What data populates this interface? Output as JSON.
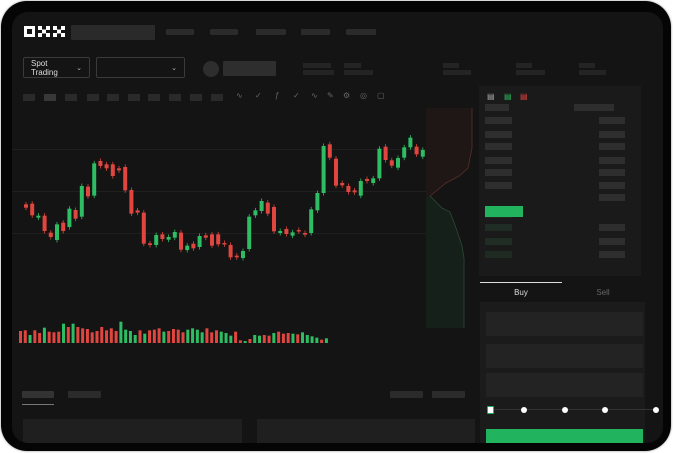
{
  "brand": {
    "logo": "OKX"
  },
  "toolbar": {
    "market_select": "Spot Trading",
    "pair_select": "",
    "chevron": "chevron-down-icon"
  },
  "order_form": {
    "tabs": [
      {
        "label": "Buy",
        "active": true
      },
      {
        "label": "Sell",
        "active": false
      }
    ],
    "leverage_slider_value": 0
  },
  "colors": {
    "up": "#2ebd63",
    "down": "#e0463f",
    "background": "#141414",
    "accent": "#22b35e"
  },
  "candles": [
    [
      250,
      260
    ],
    [
      248,
      283
    ],
    [
      290,
      284
    ],
    [
      284,
      330
    ],
    [
      335,
      348
    ],
    [
      357,
      310
    ],
    [
      305,
      330
    ],
    [
      318,
      263
    ],
    [
      267,
      293
    ],
    [
      287,
      195
    ],
    [
      197,
      226
    ],
    [
      224,
      127
    ],
    [
      120,
      135
    ],
    [
      130,
      142
    ],
    [
      130,
      165
    ],
    [
      142,
      148
    ],
    [
      138,
      208
    ],
    [
      207,
      278
    ],
    [
      268,
      275
    ],
    [
      275,
      368
    ],
    [
      367,
      372
    ],
    [
      372,
      342
    ],
    [
      340,
      354
    ],
    [
      356,
      348
    ],
    [
      350,
      333
    ],
    [
      335,
      386
    ],
    [
      387,
      374
    ],
    [
      368,
      382
    ],
    [
      378,
      345
    ],
    [
      343,
      350
    ],
    [
      340,
      374
    ],
    [
      340,
      370
    ],
    [
      366,
      370
    ],
    [
      372,
      409
    ],
    [
      404,
      409
    ],
    [
      411,
      390
    ],
    [
      384,
      287
    ],
    [
      283,
      268
    ],
    [
      270,
      240
    ],
    [
      245,
      278
    ],
    [
      258,
      331
    ],
    [
      336,
      330
    ],
    [
      324,
      339
    ],
    [
      344,
      334
    ],
    [
      327,
      331
    ],
    [
      336,
      341
    ],
    [
      336,
      265
    ],
    [
      268,
      216
    ],
    [
      216,
      75
    ],
    [
      70,
      110
    ],
    [
      113,
      194
    ],
    [
      186,
      193
    ],
    [
      195,
      213
    ],
    [
      208,
      214
    ],
    [
      224,
      180
    ],
    [
      174,
      180
    ],
    [
      186,
      172
    ],
    [
      172,
      83
    ],
    [
      77,
      117
    ],
    [
      118,
      134
    ],
    [
      140,
      111
    ],
    [
      110,
      79
    ],
    [
      79,
      50
    ],
    [
      77,
      100
    ],
    [
      107,
      87
    ]
  ],
  "volumes": [
    [
      36,
      "down"
    ],
    [
      38,
      "down"
    ],
    [
      24,
      "up"
    ],
    [
      38,
      "down"
    ],
    [
      30,
      "down"
    ],
    [
      46,
      "up"
    ],
    [
      34,
      "down"
    ],
    [
      32,
      "down"
    ],
    [
      34,
      "down"
    ],
    [
      58,
      "up"
    ],
    [
      48,
      "down"
    ],
    [
      58,
      "up"
    ],
    [
      48,
      "down"
    ],
    [
      44,
      "down"
    ],
    [
      42,
      "down"
    ],
    [
      32,
      "down"
    ],
    [
      36,
      "down"
    ],
    [
      48,
      "down"
    ],
    [
      38,
      "down"
    ],
    [
      44,
      "down"
    ],
    [
      36,
      "down"
    ],
    [
      64,
      "up"
    ],
    [
      40,
      "up"
    ],
    [
      36,
      "up"
    ],
    [
      24,
      "up"
    ],
    [
      38,
      "down"
    ],
    [
      28,
      "up"
    ],
    [
      38,
      "down"
    ],
    [
      40,
      "down"
    ],
    [
      44,
      "down"
    ],
    [
      34,
      "up"
    ],
    [
      36,
      "down"
    ],
    [
      42,
      "down"
    ],
    [
      40,
      "down"
    ],
    [
      32,
      "down"
    ],
    [
      40,
      "up"
    ],
    [
      44,
      "up"
    ],
    [
      40,
      "up"
    ],
    [
      32,
      "up"
    ],
    [
      44,
      "down"
    ],
    [
      32,
      "down"
    ],
    [
      38,
      "down"
    ],
    [
      34,
      "up"
    ],
    [
      30,
      "up"
    ],
    [
      22,
      "up"
    ],
    [
      34,
      "down"
    ],
    [
      8,
      "down"
    ],
    [
      6,
      "up"
    ],
    [
      12,
      "down"
    ],
    [
      24,
      "up"
    ],
    [
      22,
      "up"
    ],
    [
      24,
      "down"
    ],
    [
      22,
      "down"
    ],
    [
      30,
      "up"
    ],
    [
      34,
      "down"
    ],
    [
      28,
      "down"
    ],
    [
      30,
      "down"
    ],
    [
      28,
      "up"
    ],
    [
      26,
      "down"
    ],
    [
      32,
      "up"
    ],
    [
      24,
      "up"
    ],
    [
      20,
      "up"
    ],
    [
      16,
      "up"
    ],
    [
      10,
      "down"
    ],
    [
      14,
      "up"
    ]
  ]
}
